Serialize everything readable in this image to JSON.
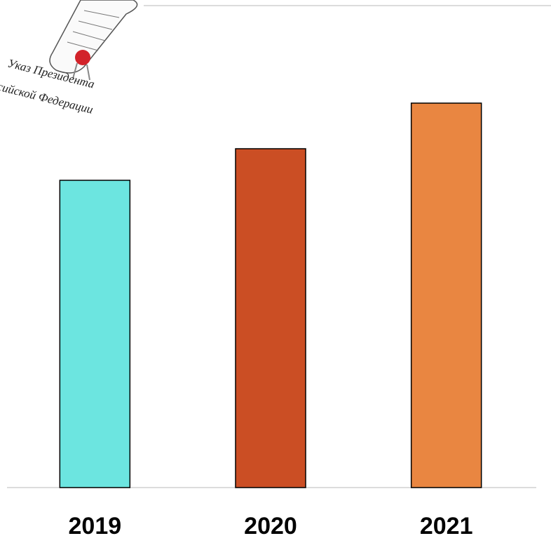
{
  "chart_data": {
    "type": "bar",
    "annotations": [
      "Указ Президента",
      "сийской Федерации"
    ],
    "categories": [
      "2019",
      "2020",
      "2021"
    ],
    "values": [
      438,
      483,
      548
    ],
    "colors": [
      "#6ce5e0",
      "#cb4e24",
      "#e98641"
    ],
    "ylim": [
      0,
      687
    ]
  }
}
